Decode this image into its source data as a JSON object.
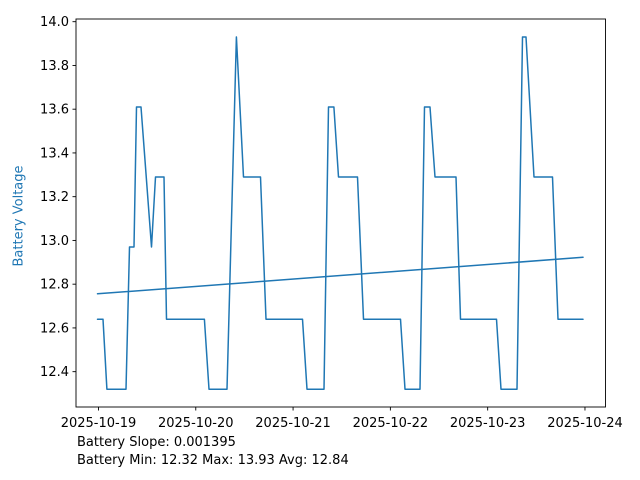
{
  "chart_data": {
    "type": "line",
    "title": "",
    "xlabel": "",
    "ylabel": "Battery Voltage",
    "ylabel_color": "#1f77b4",
    "line_color": "#1f77b4",
    "trend_color": "#1f77b4",
    "axis_color": "#000000",
    "tick_label_color": "#000000",
    "background_color": "#ffffff",
    "grid": false,
    "legend": false,
    "x_epoch": "2025-10-19 00:00 (t in days)",
    "xlim_days": [
      -0.231,
      5.211
    ],
    "ylim": [
      12.2385,
      14.0123
    ],
    "x_ticks": [
      {
        "t": 0,
        "label": "2025-10-19"
      },
      {
        "t": 1,
        "label": "2025-10-20"
      },
      {
        "t": 2,
        "label": "2025-10-21"
      },
      {
        "t": 3,
        "label": "2025-10-22"
      },
      {
        "t": 4,
        "label": "2025-10-23"
      },
      {
        "t": 5,
        "label": "2025-10-24"
      }
    ],
    "y_ticks": [
      {
        "v": 12.4,
        "label": "12.4"
      },
      {
        "v": 12.6,
        "label": "12.6"
      },
      {
        "v": 12.8,
        "label": "12.8"
      },
      {
        "v": 13.0,
        "label": "13.0"
      },
      {
        "v": 13.2,
        "label": "13.2"
      },
      {
        "v": 13.4,
        "label": "13.4"
      },
      {
        "v": 13.6,
        "label": "13.6"
      },
      {
        "v": 13.8,
        "label": "13.8"
      },
      {
        "v": 14.0,
        "label": "14.0"
      }
    ],
    "series": [
      {
        "name": "battery-voltage",
        "points": [
          [
            -0.01,
            12.64
          ],
          [
            0.046,
            12.64
          ],
          [
            0.087,
            12.32
          ],
          [
            0.283,
            12.32
          ],
          [
            0.319,
            12.97
          ],
          [
            0.365,
            12.97
          ],
          [
            0.391,
            13.61
          ],
          [
            0.437,
            13.61
          ],
          [
            0.545,
            12.97
          ],
          [
            0.586,
            13.29
          ],
          [
            0.673,
            13.29
          ],
          [
            0.699,
            12.64
          ],
          [
            1.089,
            12.64
          ],
          [
            1.136,
            12.32
          ],
          [
            1.321,
            12.32
          ],
          [
            1.418,
            13.93
          ],
          [
            1.49,
            13.29
          ],
          [
            1.665,
            13.29
          ],
          [
            1.722,
            12.64
          ],
          [
            2.097,
            12.64
          ],
          [
            2.143,
            12.32
          ],
          [
            2.318,
            12.32
          ],
          [
            2.364,
            13.61
          ],
          [
            2.42,
            13.61
          ],
          [
            2.467,
            13.29
          ],
          [
            2.662,
            13.29
          ],
          [
            2.724,
            12.64
          ],
          [
            3.104,
            12.64
          ],
          [
            3.15,
            12.32
          ],
          [
            3.304,
            12.32
          ],
          [
            3.351,
            13.61
          ],
          [
            3.407,
            13.61
          ],
          [
            3.459,
            13.29
          ],
          [
            3.674,
            13.29
          ],
          [
            3.721,
            12.64
          ],
          [
            4.091,
            12.64
          ],
          [
            4.137,
            12.32
          ],
          [
            4.301,
            12.32
          ],
          [
            4.358,
            13.93
          ],
          [
            4.394,
            13.93
          ],
          [
            4.476,
            13.29
          ],
          [
            4.666,
            13.29
          ],
          [
            4.723,
            12.64
          ],
          [
            4.98,
            12.64
          ]
        ]
      },
      {
        "name": "trend",
        "points": [
          [
            -0.01,
            12.756
          ],
          [
            4.98,
            12.923
          ]
        ]
      }
    ],
    "annotations": [
      "Battery Slope: 0.001395",
      "Battery Min: 12.32 Max: 13.93 Avg: 12.84"
    ],
    "stats": {
      "slope": "0.001395",
      "min": "12.32",
      "max": "13.93",
      "avg": "12.84"
    }
  }
}
